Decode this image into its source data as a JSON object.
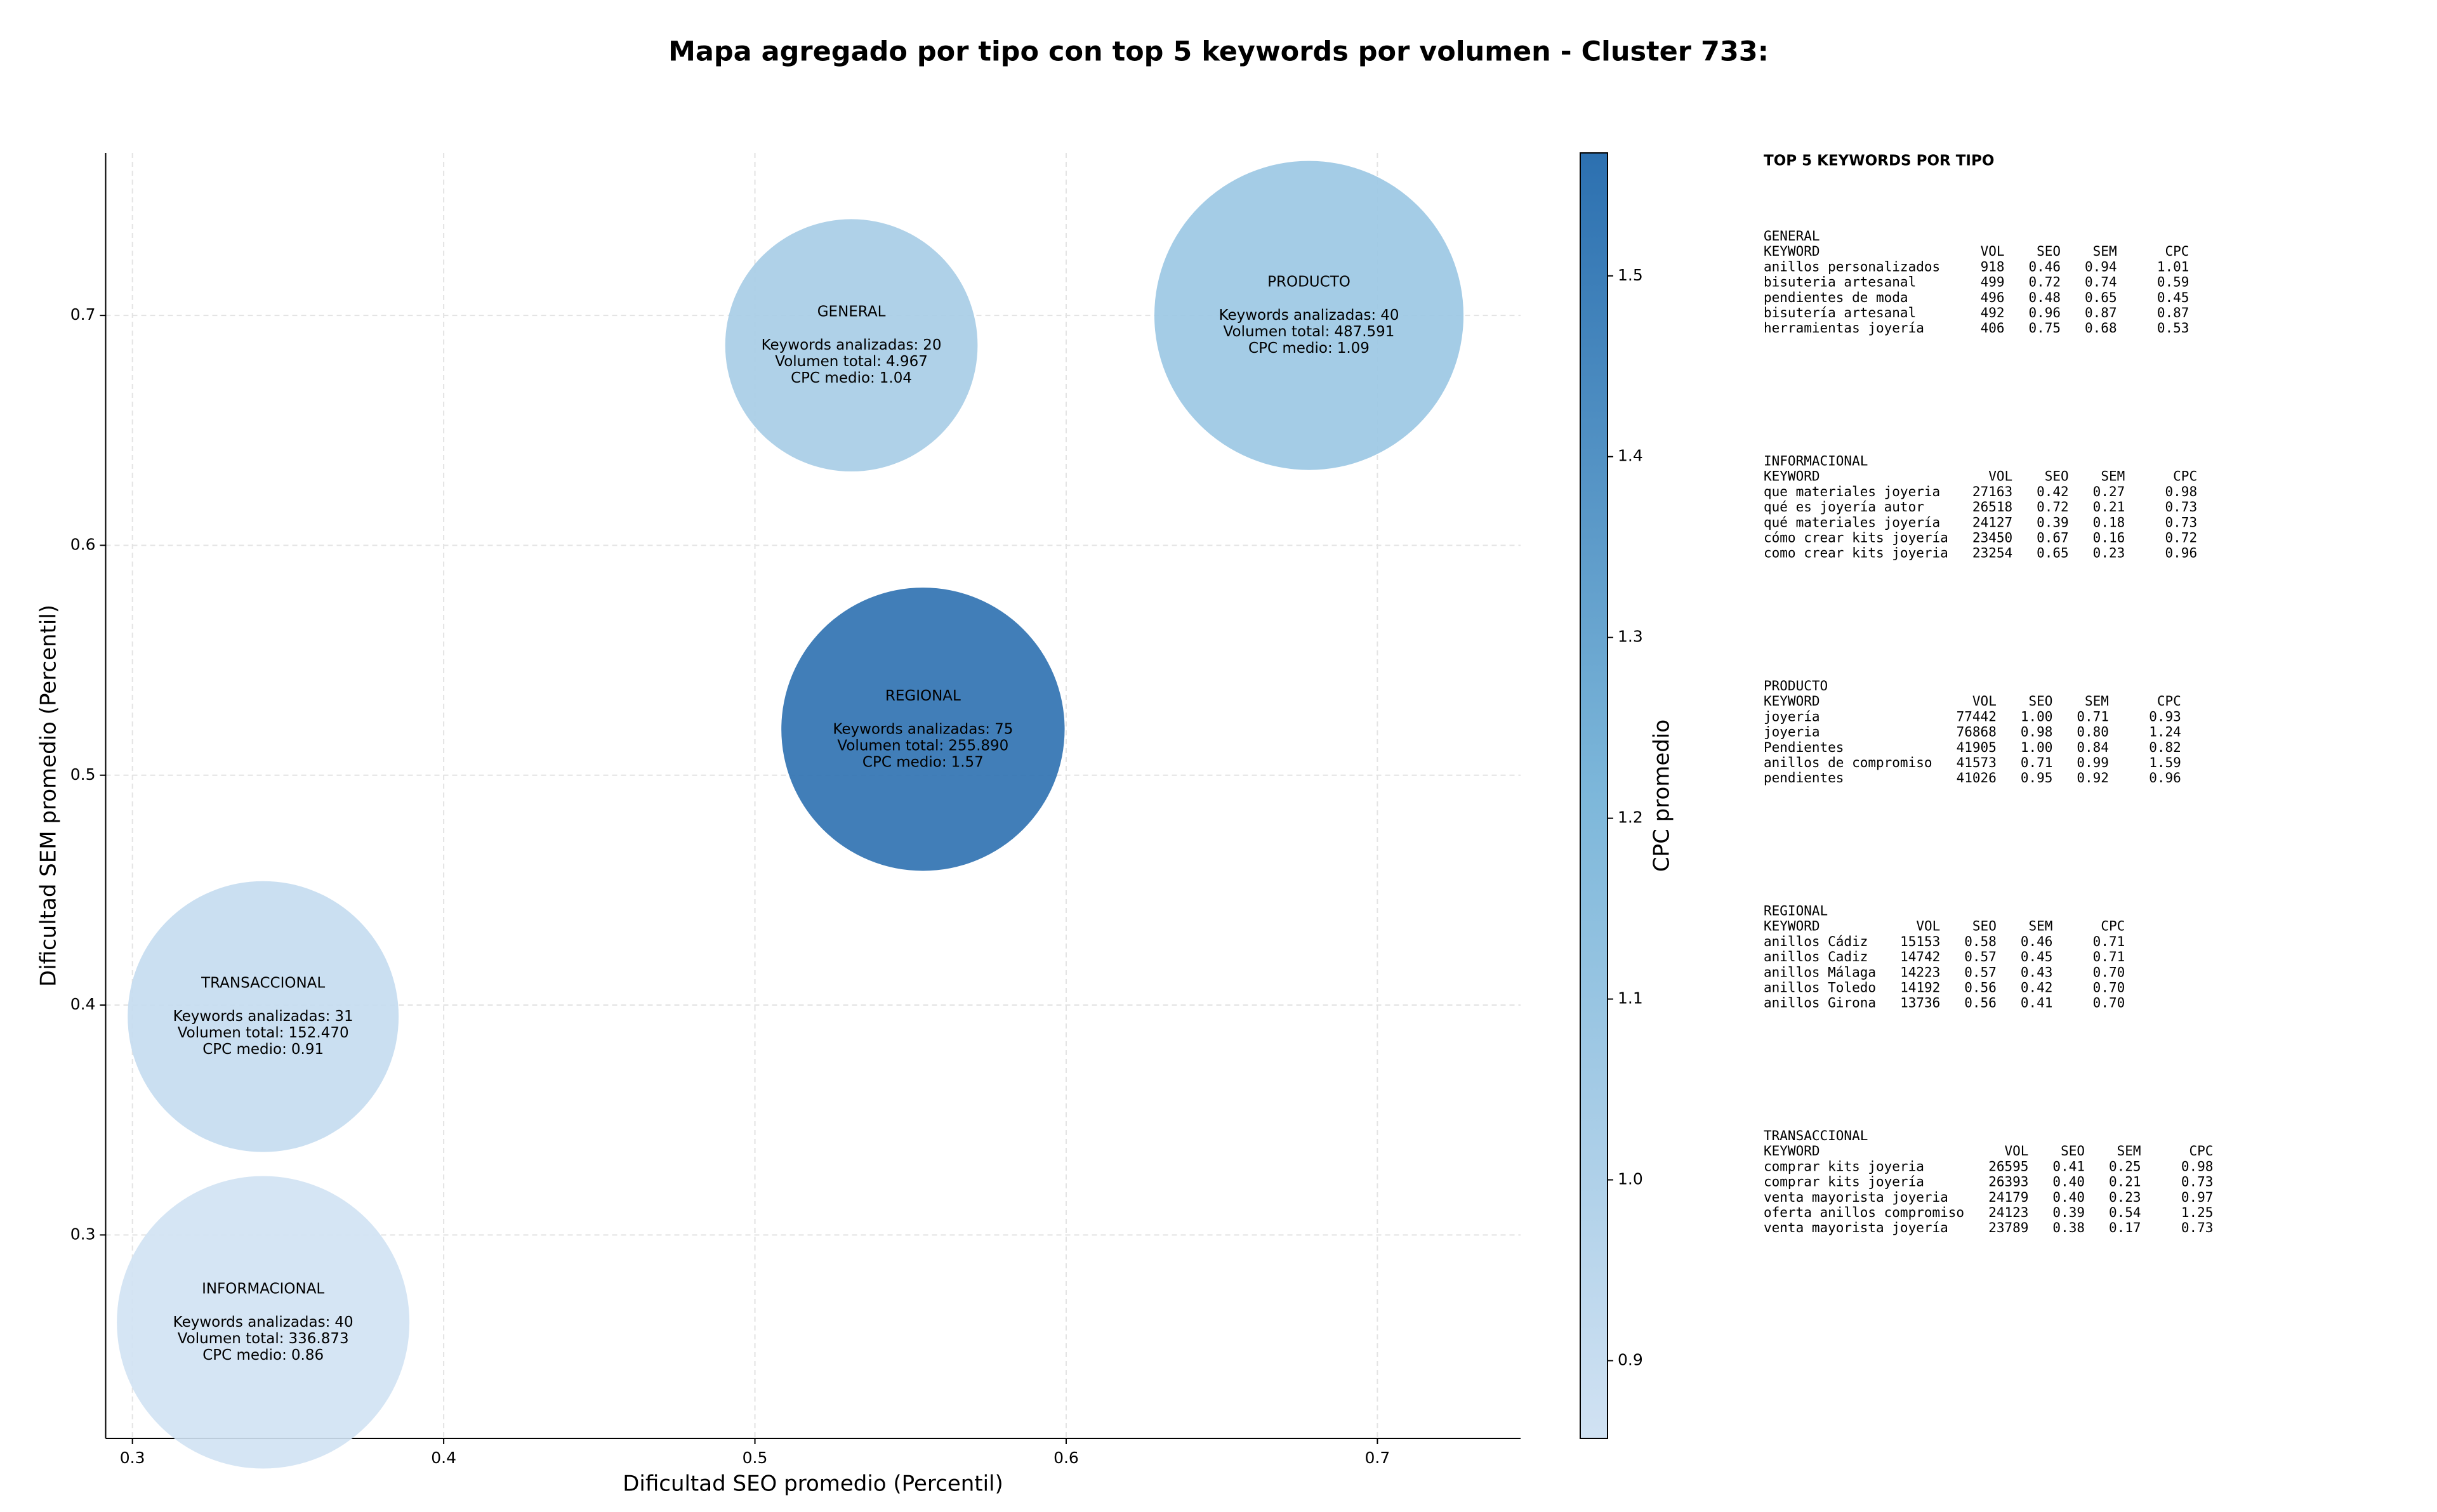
{
  "chart_data": {
    "type": "bubble",
    "title": "Mapa agregado por tipo con top 5 keywords por volumen - Cluster 733:",
    "xlabel": "Dificultad SEO promedio (Percentil)",
    "ylabel": "Dificultad SEM promedio (Percentil)",
    "xlim": [
      0.2914,
      0.746
    ],
    "ylim": [
      0.2115,
      0.7707
    ],
    "xticks": [
      0.3,
      0.4,
      0.5,
      0.6,
      0.7
    ],
    "yticks": [
      0.3,
      0.4,
      0.5,
      0.6,
      0.7
    ],
    "grid": true,
    "colorbar_label": "CPC promedio",
    "clim": [
      0.857,
      1.568
    ],
    "cticks": [
      0.9,
      {
        "value": 1,
        "label": "1.0"
      },
      1.1,
      1.2,
      1.3,
      1.4,
      1.5
    ],
    "colormap": [
      "#d1e2f3",
      "#7db7da",
      "#2c70b0"
    ],
    "annotation_prefixes": {
      "keywords": "Keywords analizadas:",
      "volume": "Volumen total:",
      "cpc": "CPC medio:"
    },
    "points": {
      "names": [
        "GENERAL",
        "PRODUCTO",
        "REGIONAL",
        "TRANSACCIONAL",
        "INFORMACIONAL"
      ],
      "x": [
        0.531,
        0.678,
        0.554,
        0.342,
        0.342
      ],
      "y": [
        0.687,
        0.7,
        0.52,
        0.395,
        0.262
      ],
      "keywords": [
        20,
        40,
        75,
        31,
        40
      ],
      "volume": [
        4967,
        487591,
        255890,
        152470,
        336873
      ],
      "volume_labels": [
        "4.967",
        "487.591",
        "255.890",
        "152.470",
        "336.873"
      ],
      "cpc": [
        1.04,
        1.09,
        1.57,
        0.91,
        0.86
      ]
    }
  },
  "keyword_panel": {
    "title": "TOP 5 KEYWORDS POR TIPO",
    "columns": [
      "KEYWORD",
      "VOL",
      "SEO",
      "SEM",
      "CPC"
    ],
    "tables": [
      {
        "name": "GENERAL",
        "rows": [
          [
            "anillos personalizados",
            "918",
            "0.46",
            "0.94",
            "1.01"
          ],
          [
            "bisuteria artesanal",
            "499",
            "0.72",
            "0.74",
            "0.59"
          ],
          [
            "pendientes de moda",
            "496",
            "0.48",
            "0.65",
            "0.45"
          ],
          [
            "bisutería artesanal",
            "492",
            "0.96",
            "0.87",
            "0.87"
          ],
          [
            "herramientas joyería",
            "406",
            "0.75",
            "0.68",
            "0.53"
          ]
        ]
      },
      {
        "name": "INFORMACIONAL",
        "rows": [
          [
            "que materiales joyeria",
            "27163",
            "0.42",
            "0.27",
            "0.98"
          ],
          [
            "qué es joyería autor",
            "26518",
            "0.72",
            "0.21",
            "0.73"
          ],
          [
            "qué materiales joyería",
            "24127",
            "0.39",
            "0.18",
            "0.73"
          ],
          [
            "cómo crear kits joyería",
            "23450",
            "0.67",
            "0.16",
            "0.72"
          ],
          [
            "como crear kits joyeria",
            "23254",
            "0.65",
            "0.23",
            "0.96"
          ]
        ]
      },
      {
        "name": "PRODUCTO",
        "rows": [
          [
            "joyería",
            "77442",
            "1.00",
            "0.71",
            "0.93"
          ],
          [
            "joyeria",
            "76868",
            "0.98",
            "0.80",
            "1.24"
          ],
          [
            "Pendientes",
            "41905",
            "1.00",
            "0.84",
            "0.82"
          ],
          [
            "anillos de compromiso",
            "41573",
            "0.71",
            "0.99",
            "1.59"
          ],
          [
            "pendientes",
            "41026",
            "0.95",
            "0.92",
            "0.96"
          ]
        ]
      },
      {
        "name": "REGIONAL",
        "rows": [
          [
            "anillos Cádiz",
            "15153",
            "0.58",
            "0.46",
            "0.71"
          ],
          [
            "anillos Cadiz",
            "14742",
            "0.57",
            "0.45",
            "0.71"
          ],
          [
            "anillos Málaga",
            "14223",
            "0.57",
            "0.43",
            "0.70"
          ],
          [
            "anillos Toledo",
            "14192",
            "0.56",
            "0.42",
            "0.70"
          ],
          [
            "anillos Girona",
            "13736",
            "0.56",
            "0.41",
            "0.70"
          ]
        ]
      },
      {
        "name": "TRANSACCIONAL",
        "rows": [
          [
            "comprar kits joyeria",
            "26595",
            "0.41",
            "0.25",
            "0.98"
          ],
          [
            "comprar kits joyería",
            "26393",
            "0.40",
            "0.21",
            "0.73"
          ],
          [
            "venta mayorista joyeria",
            "24179",
            "0.40",
            "0.23",
            "0.97"
          ],
          [
            "oferta anillos compromiso",
            "24123",
            "0.39",
            "0.54",
            "1.25"
          ],
          [
            "venta mayorista joyería",
            "23789",
            "0.38",
            "0.17",
            "0.73"
          ]
        ]
      }
    ]
  }
}
